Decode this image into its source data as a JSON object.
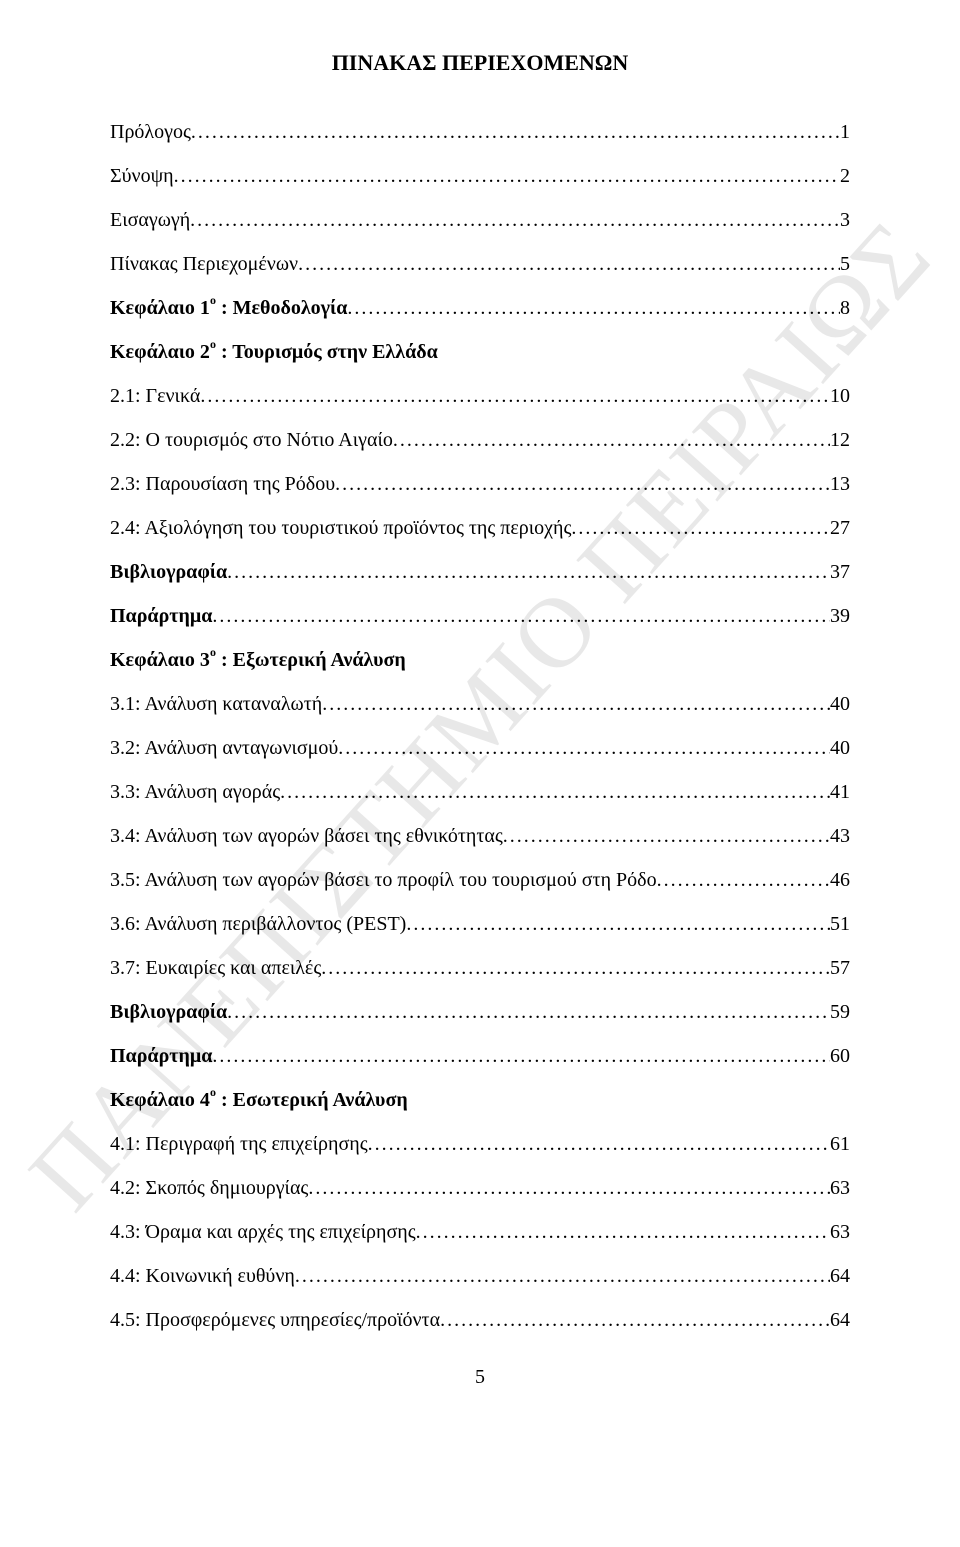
{
  "title": "ΠΙΝΑΚΑΣ ΠΕΡΙΕΧΟΜΕΝΩΝ",
  "watermark": "ΠΑΝΕΠΙΣΤΗΜΙΟ ΠΕΙΡΑΙΩΣ",
  "page_number": "5",
  "entries": [
    {
      "bold": false,
      "sup": "",
      "label": "Πρόλογος",
      "page": "1"
    },
    {
      "bold": false,
      "sup": "",
      "label": "Σύνοψη",
      "page": "2"
    },
    {
      "bold": false,
      "sup": "",
      "label": "Εισαγωγή",
      "page": "3"
    },
    {
      "bold": false,
      "sup": "",
      "label": "Πίνακας Περιεχομένων",
      "page": "5"
    },
    {
      "bold": true,
      "sup": "ο",
      "label_pre": "Κεφάλαιο 1",
      "label_post": " : Μεθοδολογία",
      "page": "8"
    },
    {
      "bold": true,
      "sup": "ο",
      "label_pre": "Κεφάλαιο 2",
      "label_post": " : Τουρισμός στην Ελλάδα",
      "page": ""
    },
    {
      "bold": false,
      "sup": "",
      "label": "2.1: Γενικά",
      "page": "10"
    },
    {
      "bold": false,
      "sup": "",
      "label": "2.2: Ο τουρισμός στο Νότιο Αιγαίο",
      "page": "12"
    },
    {
      "bold": false,
      "sup": "",
      "label": "2.3: Παρουσίαση της Ρόδου",
      "page": "13"
    },
    {
      "bold": false,
      "sup": "",
      "label": "2.4: Αξιολόγηση του τουριστικού προϊόντος της περιοχής",
      "page": "27"
    },
    {
      "bold": true,
      "sup": "",
      "label": "Βιβλιογραφία",
      "page": "37"
    },
    {
      "bold": true,
      "sup": "",
      "label": "Παράρτημα",
      "page": "39"
    },
    {
      "bold": true,
      "sup": "ο",
      "label_pre": "Κεφάλαιο 3",
      "label_post": " : Εξωτερική Ανάλυση",
      "page": ""
    },
    {
      "bold": false,
      "sup": "",
      "label": "3.1: Ανάλυση καταναλωτή",
      "page": "40"
    },
    {
      "bold": false,
      "sup": "",
      "label": "3.2: Ανάλυση ανταγωνισμού",
      "page": "40"
    },
    {
      "bold": false,
      "sup": "",
      "label": "3.3: Ανάλυση αγοράς",
      "page": "41"
    },
    {
      "bold": false,
      "sup": "",
      "label": "3.4: Ανάλυση των αγορών βάσει της εθνικότητας",
      "page": "43"
    },
    {
      "bold": false,
      "sup": "",
      "label": "3.5: Ανάλυση των αγορών βάσει το προφίλ του τουρισμού στη Ρόδο",
      "page": "46"
    },
    {
      "bold": false,
      "sup": "",
      "label": "3.6: Ανάλυση περιβάλλοντος (PEST)",
      "page": "51"
    },
    {
      "bold": false,
      "sup": "",
      "label": "3.7: Ευκαιρίες και απειλές",
      "page": "57"
    },
    {
      "bold": true,
      "sup": "",
      "label": "Βιβλιογραφία",
      "page": "59"
    },
    {
      "bold": true,
      "sup": "",
      "label": "Παράρτημα",
      "page": "60"
    },
    {
      "bold": true,
      "sup": "ο",
      "label_pre": "Κεφάλαιο 4",
      "label_post": " : Εσωτερική Ανάλυση",
      "page": ""
    },
    {
      "bold": false,
      "sup": "",
      "label": "4.1: Περιγραφή της επιχείρησης",
      "page": "61"
    },
    {
      "bold": false,
      "sup": "",
      "label": "4.2: Σκοπός δημιουργίας",
      "page": "63"
    },
    {
      "bold": false,
      "sup": "",
      "label": "4.3: Όραμα και αρχές της επιχείρησης",
      "page": "63"
    },
    {
      "bold": false,
      "sup": "",
      "label": "4.4: Κοινωνική ευθύνη",
      "page": "64"
    },
    {
      "bold": false,
      "sup": "",
      "label": "4.5: Προσφερόμενες υπηρεσίες/προϊόντα",
      "page": "64"
    }
  ]
}
